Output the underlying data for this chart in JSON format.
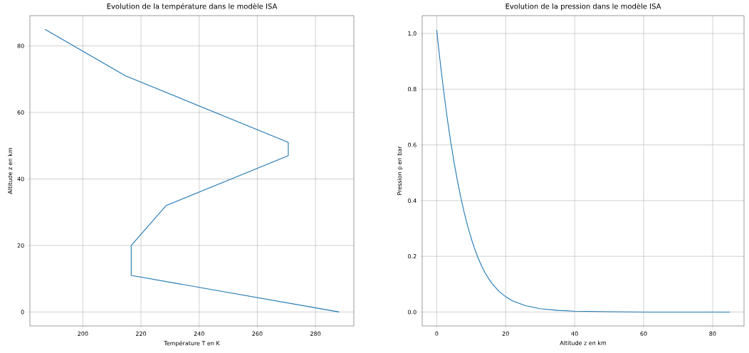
{
  "chart_data": [
    {
      "type": "line",
      "title": "Evolution de la température dans le modèle ISA",
      "xlabel": "Température T en K",
      "ylabel": "Altitude z en km",
      "x": [
        288.15,
        216.65,
        216.65,
        228.65,
        270.65,
        270.65,
        214.65,
        187
      ],
      "values": [
        0,
        11,
        20,
        32,
        47,
        51,
        71,
        85
      ],
      "color": "#1f77b4",
      "xlim": [
        181.8,
        293.2
      ],
      "ylim": [
        -4.2,
        89.1
      ],
      "xticks": [
        200,
        220,
        240,
        260,
        280
      ],
      "yticks": [
        0,
        20,
        40,
        60,
        80
      ],
      "grid": true
    },
    {
      "type": "line",
      "title": "Evolution de la pression dans le modèle ISA",
      "xlabel": "Altitude z en km",
      "ylabel": "Pression p en bar",
      "x": [
        0,
        1,
        2,
        3,
        4,
        5,
        6,
        7,
        8,
        9,
        10,
        11,
        12,
        13,
        14,
        15,
        16,
        18,
        20,
        22,
        25,
        26,
        30,
        35,
        40,
        45,
        50,
        60,
        70,
        85
      ],
      "values": [
        1.013,
        0.899,
        0.795,
        0.701,
        0.616,
        0.54,
        0.472,
        0.411,
        0.356,
        0.308,
        0.265,
        0.227,
        0.194,
        0.166,
        0.141,
        0.121,
        0.103,
        0.075,
        0.055,
        0.04,
        0.026,
        0.022,
        0.012,
        0.006,
        0.003,
        0.002,
        0.001,
        0.0,
        0.0,
        0.0
      ],
      "color": "#1f77b4",
      "xlim": [
        -4.2,
        89.1
      ],
      "ylim": [
        -0.05,
        1.064
      ],
      "xticks": [
        0,
        20,
        40,
        60,
        80
      ],
      "yticks": [
        {
          "value": 0,
          "label": "0.0"
        },
        {
          "value": 0.2,
          "label": "0.2"
        },
        {
          "value": 0.4,
          "label": "0.4"
        },
        {
          "value": 0.6,
          "label": "0.6"
        },
        {
          "value": 0.8,
          "label": "0.8"
        },
        {
          "value": 1.0,
          "label": "1.0"
        }
      ],
      "grid": true
    }
  ]
}
